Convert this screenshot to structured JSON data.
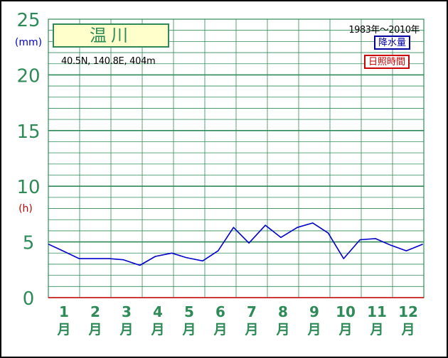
{
  "station": {
    "name": "温川",
    "coords": "40.5N,  140.8E,  404m",
    "period": "1983年～2010年"
  },
  "legend": {
    "precip": "降水量",
    "sunshine": "日照時間"
  },
  "axes": {
    "left_unit_top": "(mm)",
    "left_unit_bottom": "(h)",
    "y_ticks": [
      "0",
      "5",
      "10",
      "15",
      "20",
      "25"
    ],
    "months": [
      "1",
      "2",
      "3",
      "4",
      "5",
      "6",
      "7",
      "8",
      "9",
      "10",
      "11",
      "12"
    ],
    "month_suffix": "月"
  },
  "colors": {
    "grid": "#2e8b57",
    "axis_text": "#2e8b57",
    "precip": "#0000cc",
    "sunshine": "#cc0000",
    "unit_mm": "#0000cc",
    "unit_h": "#cc0000"
  },
  "chart_data": {
    "type": "line",
    "x_type": "day_of_year",
    "x": [
      1,
      15,
      31,
      46,
      60,
      74,
      90,
      105,
      121,
      135,
      151,
      166,
      181,
      196,
      212,
      227,
      243,
      258,
      273,
      288,
      304,
      319,
      334,
      349,
      365
    ],
    "series": [
      {
        "name": "降水量",
        "values": [
          4.8,
          4.2,
          3.5,
          3.5,
          3.5,
          3.4,
          2.9,
          3.7,
          4.0,
          3.6,
          3.3,
          4.2,
          6.3,
          4.9,
          6.5,
          5.4,
          6.3,
          6.7,
          5.8,
          3.5,
          5.2,
          5.3,
          4.7,
          4.2,
          4.8
        ]
      }
    ],
    "ylim": [
      0,
      25
    ]
  }
}
